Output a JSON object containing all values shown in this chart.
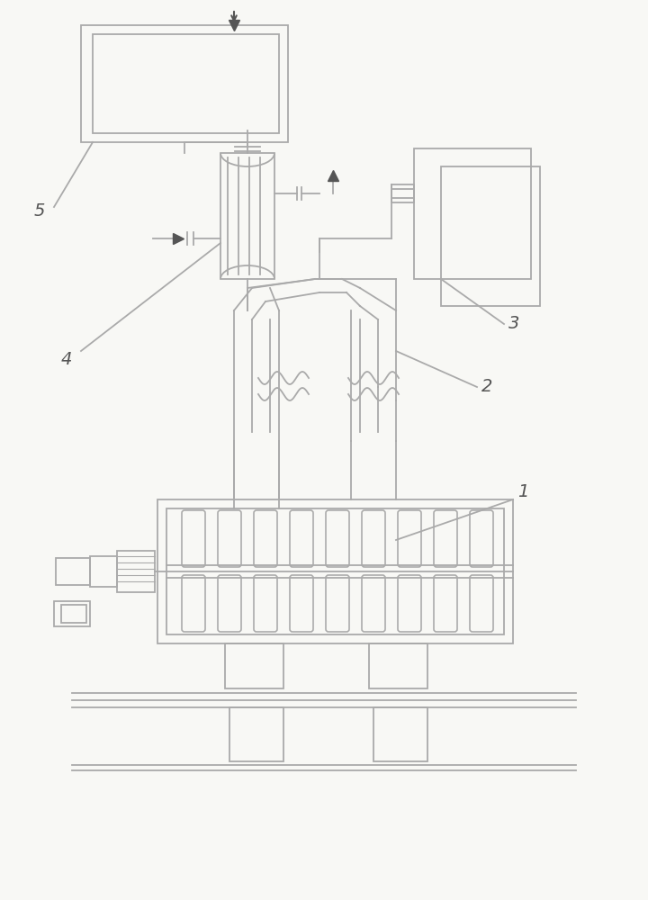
{
  "bg_color": "#f8f8f5",
  "line_color": "#aaaaaa",
  "line_width": 1.3,
  "dark_color": "#555555"
}
